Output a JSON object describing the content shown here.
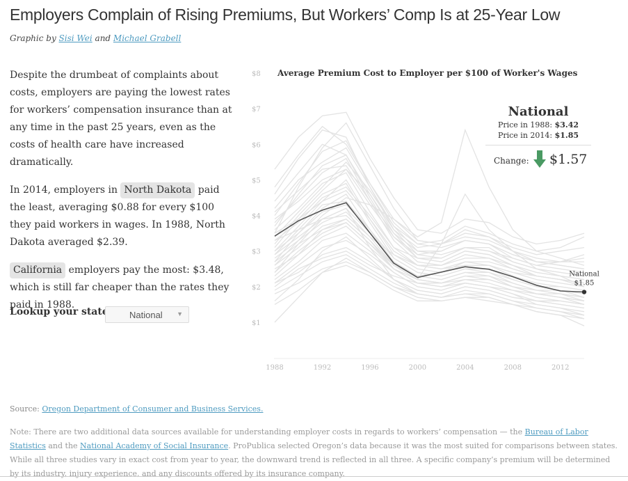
{
  "page": {
    "title": "Employers Complain of Rising Premiums, But Workers’ Comp Is at 25-Year Low",
    "byline_prefix": "Graphic by ",
    "author1": "Sisi Wei",
    "byline_and": " and ",
    "author2": "Michael Grabell"
  },
  "intro": {
    "p1": "Despite the drumbeat of complaints about costs, employers are paying the lowest rates for workers’ compensation insurance than at any time in the past 25 years, even as the costs of health care have increased dramatically.",
    "p2_pre": "In 2014, employers in ",
    "p2_state": "North Dakota",
    "p2_post": " paid the least, averaging $0.88 for every $100 they paid workers in wages. In 1988, North Dakota averaged $2.39.",
    "p3_state": "California",
    "p3_post": " employers pay the most: $3.48, which is still far cheaper than the rates they paid in 1988."
  },
  "lookup": {
    "label": "Lookup your state:",
    "selected": "National"
  },
  "info": {
    "name": "National",
    "price1988_label": "Price in 1988: ",
    "price1988": "$3.42",
    "price2014_label": "Price in 2014: ",
    "price2014": "$1.85",
    "change_label": "Change:",
    "change": "$1.57",
    "arrow_color": "#4a9a63"
  },
  "chart_data": {
    "type": "line",
    "title": "Average Premium Cost to Employer per $100 of Worker's Wages",
    "ylim": [
      1,
      8
    ],
    "xlim": [
      1988,
      2014
    ],
    "y_ticks": [
      "$1",
      "$2",
      "$3",
      "$4",
      "$5",
      "$6",
      "$7",
      "$8"
    ],
    "x_ticks": [
      "1988",
      "1992",
      "1996",
      "2000",
      "2004",
      "2008",
      "2012"
    ],
    "grid": false,
    "colors": {
      "highlight": "#555555",
      "states": "#e3e3e3"
    },
    "highlight": {
      "name": "National",
      "years": [
        1988,
        1990,
        1992,
        1994,
        1998,
        2000,
        2004,
        2006,
        2008,
        2010,
        2012,
        2014
      ],
      "values": [
        3.42,
        3.85,
        4.15,
        4.36,
        2.66,
        2.26,
        2.56,
        2.49,
        2.28,
        2.04,
        1.88,
        1.85
      ],
      "end_label": "National",
      "end_value": "$1.85"
    },
    "state_years": [
      1988,
      1990,
      1992,
      1994,
      1996,
      1998,
      2000,
      2002,
      2004,
      2006,
      2008,
      2010,
      2012,
      2014
    ],
    "state_series": [
      [
        3.5,
        4.8,
        5.9,
        6.6,
        5.4,
        4.2,
        3.3,
        3.2,
        3.5,
        3.4,
        3.0,
        2.7,
        2.6,
        2.5
      ],
      [
        5.3,
        6.2,
        6.8,
        6.9,
        5.6,
        4.5,
        3.6,
        3.5,
        3.9,
        3.8,
        3.4,
        3.2,
        3.3,
        3.5
      ],
      [
        2.1,
        2.6,
        3.1,
        3.3,
        2.9,
        2.4,
        2.0,
        1.9,
        2.1,
        2.0,
        1.8,
        1.5,
        1.4,
        1.2
      ],
      [
        2.4,
        3.2,
        3.9,
        4.2,
        3.1,
        2.2,
        1.8,
        1.7,
        1.9,
        1.8,
        1.6,
        1.4,
        1.3,
        1.1
      ],
      [
        4.2,
        5.0,
        5.5,
        5.9,
        4.8,
        3.6,
        2.9,
        2.8,
        3.1,
        3.1,
        2.7,
        2.5,
        2.4,
        2.3
      ],
      [
        1.0,
        1.7,
        2.4,
        2.8,
        2.4,
        2.0,
        1.8,
        1.7,
        1.8,
        1.7,
        1.5,
        1.3,
        1.2,
        0.9
      ],
      [
        3.0,
        3.7,
        4.4,
        5.0,
        3.9,
        2.9,
        2.5,
        2.4,
        2.7,
        2.6,
        2.3,
        2.1,
        2.0,
        1.9
      ],
      [
        2.7,
        3.5,
        4.2,
        4.6,
        3.6,
        2.6,
        2.2,
        2.1,
        2.3,
        2.3,
        2.0,
        1.8,
        1.7,
        1.6
      ],
      [
        3.8,
        4.5,
        5.2,
        5.6,
        4.4,
        3.3,
        2.7,
        2.6,
        2.9,
        2.8,
        2.5,
        2.3,
        2.2,
        2.1
      ],
      [
        4.6,
        5.6,
        6.4,
        6.2,
        4.8,
        3.7,
        3.0,
        3.0,
        3.3,
        3.2,
        2.9,
        2.7,
        2.7,
        2.8
      ],
      [
        3.2,
        4.0,
        4.7,
        5.3,
        4.6,
        3.6,
        3.1,
        3.2,
        3.6,
        3.4,
        3.1,
        2.9,
        3.0,
        3.1
      ],
      [
        2.0,
        2.5,
        2.8,
        3.0,
        2.6,
        2.3,
        2.1,
        2.0,
        2.1,
        2.0,
        1.9,
        1.8,
        1.7,
        1.5
      ],
      [
        4.0,
        4.9,
        5.8,
        6.1,
        4.9,
        3.8,
        3.2,
        3.1,
        3.3,
        3.2,
        2.8,
        2.6,
        2.5,
        2.4
      ],
      [
        2.9,
        3.4,
        3.9,
        4.2,
        3.5,
        2.7,
        2.3,
        2.2,
        2.4,
        2.3,
        2.1,
        1.9,
        1.9,
        1.8
      ],
      [
        1.6,
        2.2,
        3.0,
        3.4,
        2.8,
        2.2,
        1.9,
        1.8,
        2.0,
        1.9,
        1.7,
        1.6,
        1.5,
        1.4
      ],
      [
        3.6,
        4.2,
        4.9,
        5.2,
        4.1,
        3.1,
        2.6,
        2.6,
        2.8,
        2.8,
        2.6,
        2.4,
        2.3,
        2.2
      ],
      [
        2.3,
        2.9,
        3.6,
        3.9,
        3.3,
        2.5,
        2.2,
        3.2,
        4.6,
        3.6,
        3.0,
        2.5,
        2.3,
        2.0
      ],
      [
        2.6,
        3.3,
        4.0,
        4.5,
        4.3,
        3.9,
        3.4,
        3.8,
        6.4,
        4.8,
        3.6,
        3.0,
        2.8,
        2.6
      ],
      [
        3.3,
        3.6,
        3.9,
        4.0,
        3.4,
        2.9,
        2.6,
        2.5,
        2.6,
        2.6,
        2.4,
        2.3,
        2.2,
        2.1
      ],
      [
        1.9,
        2.3,
        2.7,
        2.9,
        2.5,
        2.1,
        1.8,
        1.7,
        1.8,
        1.8,
        1.6,
        1.5,
        1.4,
        1.3
      ],
      [
        2.5,
        2.9,
        3.4,
        3.7,
        3.1,
        2.5,
        2.1,
        2.0,
        2.2,
        2.1,
        1.9,
        1.7,
        1.6,
        1.5
      ],
      [
        3.1,
        3.9,
        4.6,
        4.9,
        3.8,
        2.8,
        2.4,
        2.3,
        2.5,
        2.4,
        2.2,
        2.0,
        1.9,
        1.7
      ],
      [
        4.4,
        5.2,
        6.0,
        5.7,
        4.6,
        3.5,
        2.8,
        2.7,
        3.0,
        2.9,
        2.6,
        2.4,
        2.3,
        2.2
      ],
      [
        2.2,
        2.7,
        3.3,
        3.5,
        3.0,
        2.4,
        2.0,
        1.9,
        2.1,
        2.0,
        1.8,
        1.6,
        1.5,
        1.4
      ],
      [
        3.4,
        4.1,
        4.8,
        5.5,
        4.7,
        3.7,
        3.2,
        3.3,
        3.7,
        3.5,
        3.2,
        3.0,
        3.1,
        3.4
      ],
      [
        2.8,
        3.3,
        3.8,
        4.1,
        3.4,
        2.6,
        2.2,
        2.1,
        2.3,
        2.2,
        2.0,
        1.8,
        1.8,
        1.7
      ],
      [
        1.8,
        2.1,
        2.5,
        2.7,
        2.4,
        2.0,
        1.7,
        1.6,
        1.7,
        1.7,
        1.5,
        1.4,
        1.3,
        1.2
      ],
      [
        3.9,
        4.4,
        5.0,
        5.3,
        4.3,
        3.4,
        2.9,
        3.0,
        3.3,
        3.2,
        2.9,
        2.7,
        2.6,
        2.5
      ],
      [
        2.4,
        3.0,
        3.5,
        3.8,
        3.2,
        2.5,
        2.1,
        2.1,
        2.3,
        2.2,
        2.0,
        1.9,
        1.8,
        1.6
      ],
      [
        3.0,
        3.5,
        4.1,
        4.3,
        3.6,
        2.8,
        2.4,
        2.3,
        2.5,
        2.5,
        2.2,
        2.0,
        2.0,
        1.9
      ],
      [
        4.8,
        5.7,
        6.5,
        6.0,
        4.9,
        3.9,
        3.3,
        3.2,
        3.4,
        3.3,
        3.0,
        2.8,
        2.7,
        2.7
      ],
      [
        2.6,
        3.1,
        3.7,
        3.9,
        3.3,
        2.6,
        2.3,
        2.2,
        2.4,
        2.4,
        2.1,
        1.9,
        1.8,
        1.7
      ],
      [
        3.7,
        4.6,
        5.4,
        5.7,
        4.5,
        3.4,
        2.8,
        2.7,
        3.0,
        2.9,
        2.6,
        2.3,
        2.2,
        2.0
      ],
      [
        2.1,
        2.4,
        2.9,
        3.1,
        2.7,
        2.2,
        1.9,
        1.8,
        2.0,
        1.9,
        1.7,
        1.6,
        1.6,
        1.5
      ],
      [
        3.5,
        3.9,
        4.4,
        4.7,
        3.9,
        3.0,
        2.6,
        2.5,
        2.7,
        2.7,
        2.5,
        2.3,
        2.2,
        2.1
      ],
      [
        2.9,
        3.6,
        4.3,
        4.4,
        3.6,
        2.7,
        2.3,
        2.4,
        2.6,
        2.6,
        2.4,
        2.2,
        2.1,
        2.0
      ],
      [
        4.1,
        4.7,
        5.3,
        5.4,
        4.4,
        3.5,
        3.0,
        2.9,
        3.1,
        3.0,
        2.7,
        2.5,
        2.4,
        2.3
      ],
      [
        1.5,
        1.9,
        2.4,
        2.6,
        2.3,
        1.9,
        1.6,
        1.6,
        1.7,
        1.6,
        1.5,
        1.3,
        1.2,
        1.1
      ],
      [
        3.3,
        3.8,
        4.5,
        4.8,
        4.0,
        3.1,
        2.8,
        2.8,
        3.1,
        3.0,
        2.8,
        2.6,
        2.7,
        2.9
      ],
      [
        2.7,
        3.2,
        3.6,
        3.8,
        3.2,
        2.6,
        2.2,
        2.1,
        2.2,
        2.2,
        2.0,
        1.8,
        1.7,
        1.6
      ]
    ]
  },
  "source": {
    "prefix": "Source: ",
    "link": "Oregon Department of Consumer and Business Services."
  },
  "note": {
    "t1": "Note: There are two additional data sources available for understanding employer costs in regards to workers’ compensation — the ",
    "link1": "Bureau of Labor Statistics",
    "t2": " and the ",
    "link2": "National Academy of Social Insurance",
    "t3": ". ProPublica selected Oregon’s data because it was the most suited for comparisons between states. While all three studies vary in exact cost from year to year, the downward trend is reflected in all three. A specific company’s premium will be determined by its industry, injury experience, and any discounts offered by its insurance company."
  }
}
